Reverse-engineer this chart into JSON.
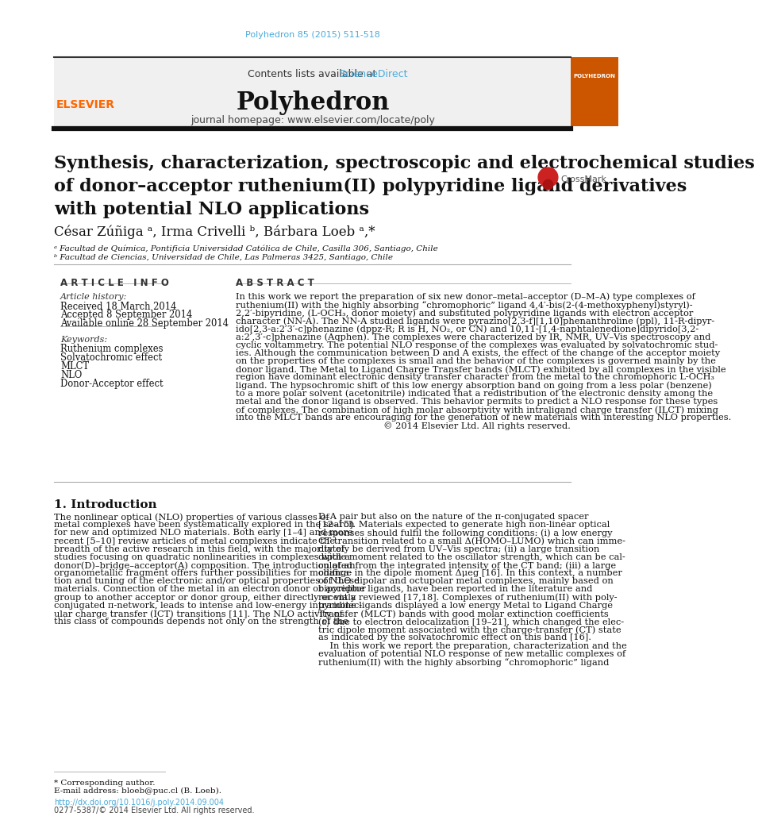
{
  "doi_text": "Polyhedron 85 (2015) 511-518",
  "doi_color": "#4AABDB",
  "contents_text": "Contents lists available at ",
  "sciencedirect_text": "ScienceDirect",
  "sciencedirect_color": "#4AABDB",
  "journal_title": "Polyhedron",
  "journal_homepage": "journal homepage: www.elsevier.com/locate/poly",
  "header_bg": "#F0F0F0",
  "article_title": "Synthesis, characterization, spectroscopic and electrochemical studies\nof donor–acceptor ruthenium(II) polypyridine ligand derivatives\nwith potential NLO applications",
  "authors": "César Zúñiga ᵃ, Irma Crivelli ᵇ, Bárbara Loeb ᵃ,*",
  "affil_a": "ᵃ Facultad de Química, Pontificia Universidad Católica de Chile, Casilla 306, Santiago, Chile",
  "affil_b": "ᵇ Facultad de Ciencias, Universidad de Chile, Las Palmeras 3425, Santiago, Chile",
  "article_info_header": "A R T I C L E   I N F O",
  "article_history_header": "Article history:",
  "received": "Received 18 March 2014",
  "accepted": "Accepted 8 September 2014",
  "available": "Available online 28 September 2014",
  "keywords_header": "Keywords:",
  "keywords": [
    "Ruthenium complexes",
    "Solvatochromic effect",
    "MLCT",
    "NLO",
    "Donor-Acceptor effect"
  ],
  "abstract_header": "A B S T R A C T",
  "intro_header": "1. Introduction",
  "footnote_star": "* Corresponding author.",
  "footnote_email": "E-mail address: bloeb@puc.cl (B. Loeb).",
  "doi_link": "http://dx.doi.org/10.1016/j.poly.2014.09.004",
  "issn": "0277-5387/© 2014 Elsevier Ltd. All rights reserved.",
  "bg_color": "#FFFFFF",
  "text_color": "#000000",
  "link_color": "#4AABDB",
  "elsevier_color": "#FF6600",
  "header_line_color": "#333333",
  "thick_line_color": "#111111",
  "sep_line_color": "#AAAAAA",
  "abstract_lines": [
    "In this work we report the preparation of six new donor–metal–acceptor (D–M–A) type complexes of",
    "ruthenium(II) with the highly absorbing “chromophoric” ligand 4,4′-bis(2-(4-methoxyphenyl)styryl)-",
    "2,2′-bipyridine, (L-OCH₃, donor moiety) and substituted polypyridine ligands with electron acceptor",
    "character (NN-A). The NN-A studied ligands were pyrazino[2,3-f][1,10]phenanthroline (ppl), 11-R-dipyr-",
    "ido[2,3-a:2′3′-c]phenazine (dppz-R; R is H, NO₂, or CN) and 10,11-[1,4-naphtalenedione]dipyrido[3,2-",
    "a:2′,3′-c]phenazine (Aqphen). The complexes were characterized by IR, NMR, UV–Vis spectroscopy and",
    "cyclic voltammetry. The potential NLO response of the complexes was evaluated by solvatochromic stud-",
    "ies. Although the communication between D and A exists, the effect of the change of the acceptor moiety",
    "on the properties of the complexes is small and the behavior of the complexes is governed mainly by the",
    "donor ligand. The Metal to Ligand Charge Transfer bands (MLCT) exhibited by all complexes in the visible",
    "region have dominant electronic density transfer character from the metal to the chromophoric L-OCH₃",
    "ligand. The hypsochromic shift of this low energy absorption band on going from a less polar (benzene)",
    "to a more polar solvent (acetonitrile) indicated that a redistribution of the electronic density among the",
    "metal and the donor ligand is observed. This behavior permits to predict a NLO response for these types",
    "of complexes. The combination of high molar absorptivity with intraligand charge transfer (ILCT) mixing",
    "into the MLCT bands are encouraging for the generation of new materials with interesting NLO properties.",
    "© 2014 Elsevier Ltd. All rights reserved."
  ],
  "intro1_lines": [
    "The nonlinear optical (NLO) properties of various classes of",
    "metal complexes have been systematically explored in the search",
    "for new and optimized NLO materials. Both early [1–4] and more",
    "recent [5–10] review articles of metal complexes indicate the",
    "breadth of the active research in this field, with the majority of",
    "studies focusing on quadratic nonlinearities in complexes with a",
    "donor(D)–bridge–acceptor(A) composition. The introduction of an",
    "organometallic fragment offers further possibilities for modifica-",
    "tion and tuning of the electronic and/or optical properties of these",
    "materials. Connection of the metal in an electron donor or acceptor",
    "group to another acceptor or donor group, either directly or via a",
    "conjugated π-network, leads to intense and low-energy intramolec-",
    "ular charge transfer (ICT) transitions [11]. The NLO activity of",
    "this class of compounds depends not only on the strength of the"
  ],
  "intro2_lines": [
    "D–A pair but also on the nature of the π-conjugated spacer",
    "[12–15]. Materials expected to generate high non-linear optical",
    "responses should fulfil the following conditions: (i) a low energy",
    "CT transition related to a small Δ(HOMO–LUMO) which can imme-",
    "diately be derived from UV–Vis spectra; (ii) a large transition",
    "dipole moment related to the oscillator strength, which can be cal-",
    "culated from the integrated intensity of the CT band; (iii) a large",
    "change in the dipole moment Δμeg [16]. In this context, a number",
    "of NLO dipolar and octupolar metal complexes, mainly based on",
    "bipyridine ligands, have been reported in the literature and",
    "recently reviewed [17,18]. Complexes of ruthenium(II) with poly-",
    "pyridine ligands displayed a low energy Metal to Ligand Charge",
    "Transfer (MLCT) bands with good molar extinction coefficients",
    "(ε) due to electron delocalization [19–21], which changed the elec-",
    "tric dipole moment associated with the charge-transfer (CT) state",
    "as indicated by the solvatochromic effect on this band [16].",
    "    In this work we report the preparation, characterization and the",
    "evaluation of potential NLO response of new metallic complexes of",
    "ruthenium(II) with the highly absorbing “chromophoric” ligand"
  ]
}
